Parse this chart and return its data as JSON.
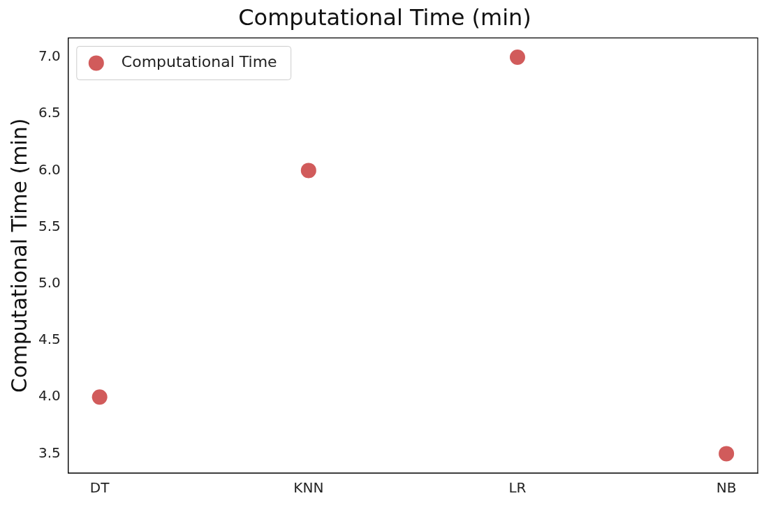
{
  "chart_data": {
    "type": "scatter",
    "title": "Computational Time (min)",
    "ylabel": "Computational Time (min)",
    "categories": [
      "DT",
      "KNN",
      "LR",
      "NB"
    ],
    "series": [
      {
        "name": "Computational Time",
        "color": "#d15b5b",
        "values": [
          4.0,
          6.0,
          7.0,
          3.5
        ]
      }
    ],
    "ylim": [
      3.33,
      7.17
    ],
    "yticks": [
      3.5,
      {
        "value": 4,
        "label": "4.0"
      },
      4.5,
      {
        "value": 5,
        "label": "5.0"
      },
      5.5,
      {
        "value": 6,
        "label": "6.0"
      },
      6.5,
      {
        "value": 7,
        "label": "7.0"
      }
    ],
    "grid": false,
    "legend": "top left",
    "marker": "circle"
  }
}
